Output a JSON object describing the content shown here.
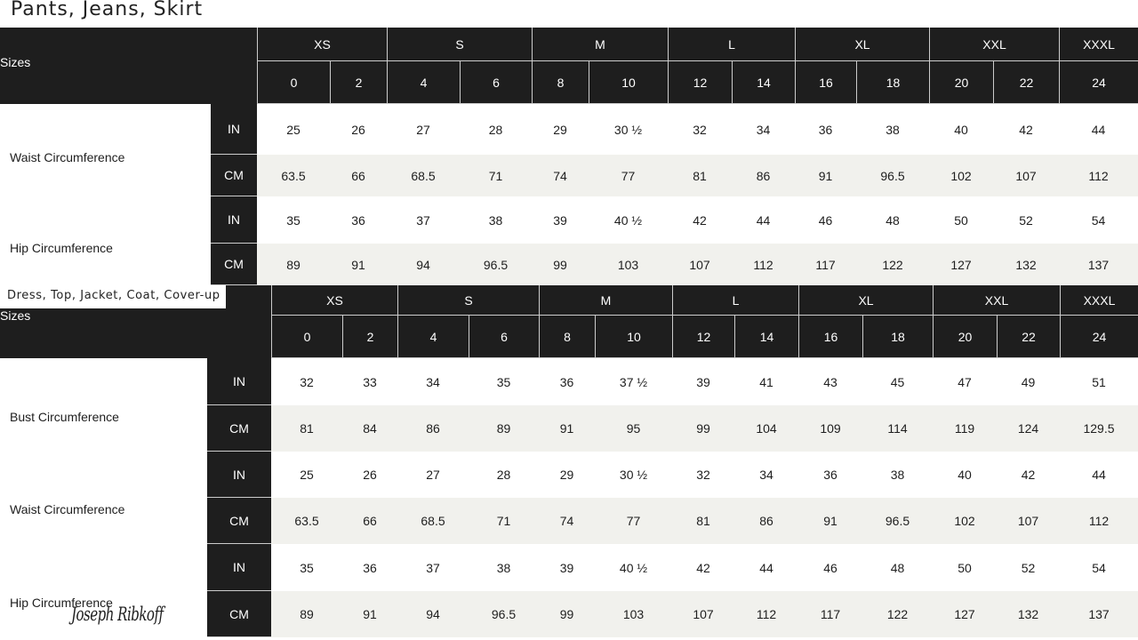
{
  "charts": [
    {
      "title": "Pants, Jeans, Skirt",
      "sizes_label": "Sizes",
      "groups": [
        {
          "label": "XS",
          "sizes": [
            "0",
            "2"
          ]
        },
        {
          "label": "S",
          "sizes": [
            "4",
            "6"
          ]
        },
        {
          "label": "M",
          "sizes": [
            "8",
            "10"
          ]
        },
        {
          "label": "L",
          "sizes": [
            "12",
            "14"
          ]
        },
        {
          "label": "XL",
          "sizes": [
            "16",
            "18"
          ]
        },
        {
          "label": "XXL",
          "sizes": [
            "20",
            "22"
          ]
        },
        {
          "label": "XXXL",
          "sizes": [
            "24"
          ]
        }
      ],
      "measurements": [
        {
          "label": "Waist Circumference",
          "rows": [
            {
              "unit": "IN",
              "values": [
                "25",
                "26",
                "27",
                "28",
                "29",
                "30 ½",
                "32",
                "34",
                "36",
                "38",
                "40",
                "42",
                "44"
              ]
            },
            {
              "unit": "CM",
              "values": [
                "63.5",
                "66",
                "68.5",
                "71",
                "74",
                "77",
                "81",
                "86",
                "91",
                "96.5",
                "102",
                "107",
                "112"
              ]
            }
          ]
        },
        {
          "label": "Hip Circumference",
          "rows": [
            {
              "unit": "IN",
              "values": [
                "35",
                "36",
                "37",
                "38",
                "39",
                "40 ½",
                "42",
                "44",
                "46",
                "48",
                "50",
                "52",
                "54"
              ]
            },
            {
              "unit": "CM",
              "values": [
                "89",
                "91",
                "94",
                "96.5",
                "99",
                "103",
                "107",
                "112",
                "117",
                "122",
                "127",
                "132",
                "137"
              ]
            }
          ]
        }
      ]
    },
    {
      "title": "Dress, Top, Jacket, Coat, Cover-up",
      "sizes_label": "Sizes",
      "groups": [
        {
          "label": "XS",
          "sizes": [
            "0",
            "2"
          ]
        },
        {
          "label": "S",
          "sizes": [
            "4",
            "6"
          ]
        },
        {
          "label": "M",
          "sizes": [
            "8",
            "10"
          ]
        },
        {
          "label": "L",
          "sizes": [
            "12",
            "14"
          ]
        },
        {
          "label": "XL",
          "sizes": [
            "16",
            "18"
          ]
        },
        {
          "label": "XXL",
          "sizes": [
            "20",
            "22"
          ]
        },
        {
          "label": "XXXL",
          "sizes": [
            "24"
          ]
        }
      ],
      "measurements": [
        {
          "label": "Bust Circumference",
          "rows": [
            {
              "unit": "IN",
              "values": [
                "32",
                "33",
                "34",
                "35",
                "36",
                "37 ½",
                "39",
                "41",
                "43",
                "45",
                "47",
                "49",
                "51"
              ]
            },
            {
              "unit": "CM",
              "values": [
                "81",
                "84",
                "86",
                "89",
                "91",
                "95",
                "99",
                "104",
                "109",
                "114",
                "119",
                "124",
                "129.5"
              ]
            }
          ]
        },
        {
          "label": "Waist Circumference",
          "rows": [
            {
              "unit": "IN",
              "values": [
                "25",
                "26",
                "27",
                "28",
                "29",
                "30 ½",
                "32",
                "34",
                "36",
                "38",
                "40",
                "42",
                "44"
              ]
            },
            {
              "unit": "CM",
              "values": [
                "63.5",
                "66",
                "68.5",
                "71",
                "74",
                "77",
                "81",
                "86",
                "91",
                "96.5",
                "102",
                "107",
                "112"
              ]
            }
          ]
        },
        {
          "label": "Hip Circumference",
          "rows": [
            {
              "unit": "IN",
              "values": [
                "35",
                "36",
                "37",
                "38",
                "39",
                "40 ½",
                "42",
                "44",
                "46",
                "48",
                "50",
                "52",
                "54"
              ]
            },
            {
              "unit": "CM",
              "values": [
                "89",
                "91",
                "94",
                "96.5",
                "99",
                "103",
                "107",
                "112",
                "117",
                "122",
                "127",
                "132",
                "137"
              ]
            }
          ]
        }
      ]
    }
  ],
  "brand_logo": "Joseph Ribkoff"
}
